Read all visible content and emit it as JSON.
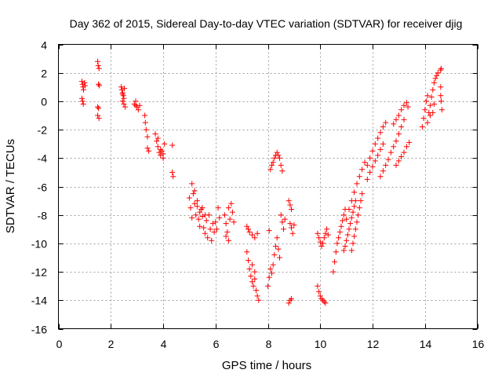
{
  "chart_data": {
    "type": "scatter",
    "title": "Day 362 of 2015, Sidereal Day-to-day VTEC variation (SDTVAR) for receiver djig",
    "xlabel": "GPS time / hours",
    "ylabel": "SDTVAR / TECUs",
    "xlim": [
      0,
      16
    ],
    "ylim": [
      -16,
      4
    ],
    "xticks": [
      0,
      2,
      4,
      6,
      8,
      10,
      12,
      14,
      16
    ],
    "yticks": [
      -16,
      -14,
      -12,
      -10,
      -8,
      -6,
      -4,
      -2,
      0,
      2,
      4
    ],
    "xtick_labels": [
      "0",
      "2",
      "4",
      "6",
      "8",
      "10",
      "12",
      "14",
      "16"
    ],
    "ytick_labels": [
      "-16",
      "-14",
      "-12",
      "-10",
      "-8",
      "-6",
      "-4",
      "-2",
      "0",
      "2",
      "4"
    ],
    "grid": true,
    "marker": "+",
    "color": "#ff0000",
    "series": [
      {
        "name": "SDTVAR",
        "points": [
          [
            0.9,
            1.4
          ],
          [
            0.92,
            1.2
          ],
          [
            0.94,
            1.0
          ],
          [
            0.96,
            0.8
          ],
          [
            0.9,
            0.2
          ],
          [
            0.92,
            0.0
          ],
          [
            0.95,
            -0.2
          ],
          [
            1.0,
            1.3
          ],
          [
            1.02,
            1.1
          ],
          [
            1.5,
            2.8
          ],
          [
            1.52,
            2.5
          ],
          [
            1.55,
            2.3
          ],
          [
            1.53,
            1.2
          ],
          [
            1.56,
            1.1
          ],
          [
            1.5,
            -0.4
          ],
          [
            1.53,
            -0.5
          ],
          [
            1.5,
            -1.0
          ],
          [
            1.55,
            -1.2
          ],
          [
            2.4,
            1.0
          ],
          [
            2.42,
            0.8
          ],
          [
            2.45,
            0.6
          ],
          [
            2.48,
            0.4
          ],
          [
            2.5,
            0.2
          ],
          [
            2.45,
            0.0
          ],
          [
            2.5,
            -0.2
          ],
          [
            2.55,
            -0.4
          ],
          [
            2.45,
            0.5
          ],
          [
            2.52,
            0.9
          ],
          [
            2.9,
            -0.2
          ],
          [
            2.95,
            -0.3
          ],
          [
            3.0,
            -0.4
          ],
          [
            3.05,
            -0.6
          ],
          [
            3.1,
            -0.3
          ],
          [
            2.95,
            0.0
          ],
          [
            3.3,
            -1.0
          ],
          [
            3.32,
            -1.5
          ],
          [
            3.35,
            -2.0
          ],
          [
            3.4,
            -2.5
          ],
          [
            3.4,
            -3.3
          ],
          [
            3.45,
            -3.5
          ],
          [
            3.7,
            -2.3
          ],
          [
            3.75,
            -2.8
          ],
          [
            3.8,
            -3.2
          ],
          [
            3.85,
            -3.6
          ],
          [
            3.9,
            -3.8
          ],
          [
            3.95,
            -3.5
          ],
          [
            4.0,
            -4.0
          ],
          [
            4.05,
            -3.0
          ],
          [
            3.8,
            -2.6
          ],
          [
            3.9,
            -3.4
          ],
          [
            4.0,
            -3.7
          ],
          [
            4.35,
            -3.1
          ],
          [
            4.35,
            -5.0
          ],
          [
            4.38,
            -5.3
          ],
          [
            5.0,
            -6.8
          ],
          [
            5.05,
            -7.5
          ],
          [
            5.1,
            -8.2
          ],
          [
            5.15,
            -6.5
          ],
          [
            5.2,
            -7.2
          ],
          [
            5.25,
            -8.0
          ],
          [
            5.3,
            -7.4
          ],
          [
            5.35,
            -8.3
          ],
          [
            5.4,
            -8.8
          ],
          [
            5.45,
            -7.6
          ],
          [
            5.5,
            -8.1
          ],
          [
            5.55,
            -8.9
          ],
          [
            5.6,
            -9.3
          ],
          [
            5.65,
            -8.4
          ],
          [
            5.7,
            -9.6
          ],
          [
            5.75,
            -8.0
          ],
          [
            5.8,
            -9.0
          ],
          [
            5.85,
            -9.8
          ],
          [
            5.9,
            -8.6
          ],
          [
            5.95,
            -9.2
          ],
          [
            6.0,
            -8.5
          ],
          [
            6.05,
            -9.0
          ],
          [
            6.1,
            -7.5
          ],
          [
            6.15,
            -8.2
          ],
          [
            5.1,
            -5.8
          ],
          [
            5.2,
            -6.3
          ],
          [
            5.3,
            -7.0
          ],
          [
            5.4,
            -7.8
          ],
          [
            5.5,
            -7.5
          ],
          [
            5.6,
            -8.0
          ],
          [
            6.35,
            -8.0
          ],
          [
            6.4,
            -8.6
          ],
          [
            6.45,
            -9.2
          ],
          [
            6.5,
            -9.8
          ],
          [
            6.5,
            -7.5
          ],
          [
            6.55,
            -8.3
          ],
          [
            6.6,
            -7.2
          ],
          [
            6.65,
            -7.8
          ],
          [
            6.7,
            -8.5
          ],
          [
            6.4,
            -9.5
          ],
          [
            7.2,
            -8.8
          ],
          [
            7.25,
            -9.0
          ],
          [
            7.3,
            -9.2
          ],
          [
            7.4,
            -9.4
          ],
          [
            7.5,
            -9.6
          ],
          [
            7.6,
            -9.3
          ],
          [
            7.2,
            -10.6
          ],
          [
            7.25,
            -11.2
          ],
          [
            7.3,
            -11.8
          ],
          [
            7.35,
            -12.3
          ],
          [
            7.4,
            -12.7
          ],
          [
            7.45,
            -13.0
          ],
          [
            7.5,
            -12.5
          ],
          [
            7.55,
            -13.3
          ],
          [
            7.6,
            -13.7
          ],
          [
            7.65,
            -14.0
          ],
          [
            7.4,
            -11.5
          ],
          [
            7.5,
            -12.0
          ],
          [
            8.0,
            -13.0
          ],
          [
            8.05,
            -12.4
          ],
          [
            8.1,
            -11.8
          ],
          [
            8.15,
            -12.1
          ],
          [
            8.2,
            -11.5
          ],
          [
            8.25,
            -10.8
          ],
          [
            8.3,
            -10.2
          ],
          [
            8.35,
            -9.6
          ],
          [
            8.4,
            -10.4
          ],
          [
            8.45,
            -11.0
          ],
          [
            8.05,
            -9.1
          ],
          [
            8.1,
            -4.8
          ],
          [
            8.15,
            -4.5
          ],
          [
            8.2,
            -4.3
          ],
          [
            8.25,
            -4.0
          ],
          [
            8.3,
            -3.8
          ],
          [
            8.35,
            -3.6
          ],
          [
            8.4,
            -3.8
          ],
          [
            8.45,
            -4.0
          ],
          [
            8.5,
            -4.5
          ],
          [
            8.55,
            -4.9
          ],
          [
            8.5,
            -8.0
          ],
          [
            8.55,
            -8.5
          ],
          [
            8.6,
            -9.0
          ],
          [
            8.65,
            -8.3
          ],
          [
            8.8,
            -7.0
          ],
          [
            8.85,
            -7.3
          ],
          [
            8.9,
            -7.6
          ],
          [
            8.85,
            -8.6
          ],
          [
            8.9,
            -8.9
          ],
          [
            8.95,
            -9.3
          ],
          [
            9.0,
            -8.7
          ],
          [
            8.8,
            -14.2
          ],
          [
            8.85,
            -14.0
          ],
          [
            8.9,
            -13.9
          ],
          [
            9.9,
            -9.3
          ],
          [
            9.95,
            -9.6
          ],
          [
            10.0,
            -9.9
          ],
          [
            10.05,
            -10.2
          ],
          [
            10.1,
            -10.0
          ],
          [
            10.15,
            -9.6
          ],
          [
            10.2,
            -9.3
          ],
          [
            10.25,
            -9.0
          ],
          [
            10.3,
            -9.4
          ],
          [
            9.9,
            -13.0
          ],
          [
            9.95,
            -13.4
          ],
          [
            10.0,
            -13.7
          ],
          [
            10.05,
            -13.9
          ],
          [
            10.1,
            -14.0
          ],
          [
            10.15,
            -14.1
          ],
          [
            10.2,
            -14.2
          ],
          [
            10.5,
            -12.0
          ],
          [
            10.55,
            -11.3
          ],
          [
            10.6,
            -10.6
          ],
          [
            10.65,
            -10.0
          ],
          [
            10.7,
            -9.6
          ],
          [
            10.75,
            -9.2
          ],
          [
            10.8,
            -8.8
          ],
          [
            10.85,
            -8.4
          ],
          [
            10.9,
            -8.0
          ],
          [
            10.95,
            -7.6
          ],
          [
            10.9,
            -10.5
          ],
          [
            10.95,
            -10.2
          ],
          [
            11.0,
            -9.8
          ],
          [
            11.05,
            -9.4
          ],
          [
            11.1,
            -9.0
          ],
          [
            11.15,
            -8.6
          ],
          [
            11.2,
            -8.2
          ],
          [
            11.25,
            -7.8
          ],
          [
            11.3,
            -7.4
          ],
          [
            11.35,
            -7.0
          ],
          [
            11.2,
            -10.5
          ],
          [
            11.25,
            -10.0
          ],
          [
            11.3,
            -9.5
          ],
          [
            11.35,
            -9.0
          ],
          [
            11.4,
            -8.5
          ],
          [
            11.45,
            -8.0
          ],
          [
            11.5,
            -7.5
          ],
          [
            11.55,
            -7.0
          ],
          [
            11.6,
            -6.5
          ],
          [
            11.0,
            -8.3
          ],
          [
            11.1,
            -7.6
          ],
          [
            11.2,
            -7.0
          ],
          [
            11.3,
            -6.4
          ],
          [
            11.4,
            -5.8
          ],
          [
            11.5,
            -5.3
          ],
          [
            11.6,
            -4.8
          ],
          [
            11.7,
            -4.3
          ],
          [
            11.8,
            -4.5
          ],
          [
            11.9,
            -4.0
          ],
          [
            12.0,
            -3.5
          ],
          [
            12.1,
            -3.0
          ],
          [
            12.2,
            -2.6
          ],
          [
            12.3,
            -2.2
          ],
          [
            12.4,
            -1.8
          ],
          [
            12.5,
            -1.5
          ],
          [
            11.8,
            -5.5
          ],
          [
            11.9,
            -5.0
          ],
          [
            12.0,
            -4.6
          ],
          [
            12.1,
            -4.2
          ],
          [
            12.2,
            -3.8
          ],
          [
            12.3,
            -3.4
          ],
          [
            12.4,
            -3.0
          ],
          [
            12.3,
            -5.3
          ],
          [
            12.4,
            -4.9
          ],
          [
            12.5,
            -4.5
          ],
          [
            12.6,
            -4.1
          ],
          [
            12.7,
            -3.6
          ],
          [
            12.8,
            -3.2
          ],
          [
            12.9,
            -2.8
          ],
          [
            13.0,
            -2.3
          ],
          [
            13.1,
            -1.8
          ],
          [
            13.2,
            -1.3
          ],
          [
            12.9,
            -4.5
          ],
          [
            13.0,
            -4.2
          ],
          [
            13.1,
            -3.9
          ],
          [
            13.2,
            -3.6
          ],
          [
            13.3,
            -3.2
          ],
          [
            13.4,
            -2.9
          ],
          [
            12.8,
            -1.6
          ],
          [
            12.9,
            -1.3
          ],
          [
            13.0,
            -1.0
          ],
          [
            13.1,
            -0.6
          ],
          [
            13.2,
            -0.3
          ],
          [
            13.3,
            -0.1
          ],
          [
            13.35,
            -0.4
          ],
          [
            13.9,
            -1.8
          ],
          [
            13.95,
            -1.2
          ],
          [
            14.0,
            -0.6
          ],
          [
            14.05,
            0.0
          ],
          [
            14.1,
            0.4
          ],
          [
            14.15,
            -0.8
          ],
          [
            14.2,
            -0.3
          ],
          [
            14.25,
            0.3
          ],
          [
            14.3,
            0.8
          ],
          [
            14.35,
            1.3
          ],
          [
            14.4,
            1.6
          ],
          [
            14.45,
            1.8
          ],
          [
            14.5,
            2.0
          ],
          [
            14.6,
            2.2
          ],
          [
            14.62,
            2.3
          ],
          [
            14.6,
            0.4
          ],
          [
            14.62,
            0.0
          ],
          [
            14.65,
            -0.6
          ],
          [
            14.6,
            1.0
          ],
          [
            14.1,
            -1.5
          ],
          [
            14.2,
            -1.0
          ],
          [
            14.3,
            -0.8
          ],
          [
            14.35,
            -0.2
          ]
        ]
      }
    ]
  }
}
